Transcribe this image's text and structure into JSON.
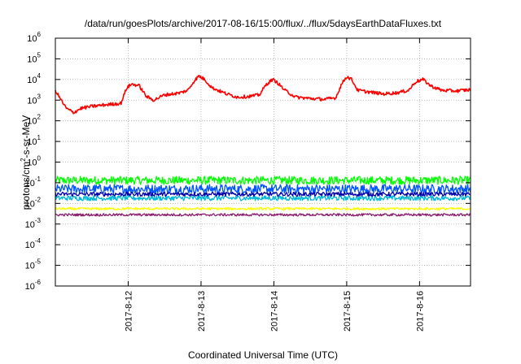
{
  "chart_data": {
    "type": "line",
    "title": "/data/run/goesPlots/archive/2017-08-16/15:00/flux/../flux/5daysEarthDataFluxes.txt",
    "xlabel": "Coordinated Universal Time (UTC)",
    "ylabel": {
      "prefix": "protons/cm",
      "sup": "2",
      "suffix": "-s-sr-MeV"
    },
    "x_ticks": [
      "2017-8-12",
      "2017-8-13",
      "2017-8-14",
      "2017-8-15",
      "2017-8-16"
    ],
    "x_tick_days": [
      1.0,
      2.0,
      3.0,
      4.0,
      5.0
    ],
    "x_range_days": [
      0.0,
      5.7
    ],
    "y_scale": "log",
    "y_range": [
      1e-06,
      1000000.0
    ],
    "y_ticks": [
      {
        "base": "10",
        "exp": "6"
      },
      {
        "base": "10",
        "exp": "5"
      },
      {
        "base": "10",
        "exp": "4"
      },
      {
        "base": "10",
        "exp": "3"
      },
      {
        "base": "10",
        "exp": "2"
      },
      {
        "base": "10",
        "exp": "1"
      },
      {
        "base": "10",
        "exp": "0"
      },
      {
        "base": "10",
        "exp": "-1"
      },
      {
        "base": "10",
        "exp": "-2"
      },
      {
        "base": "10",
        "exp": "-3"
      },
      {
        "base": "10",
        "exp": "-4"
      },
      {
        "base": "10",
        "exp": "-5"
      },
      {
        "base": "10",
        "exp": "-6"
      }
    ],
    "y_tick_exponents": [
      6,
      5,
      4,
      3,
      2,
      1,
      0,
      -1,
      -2,
      -3,
      -4,
      -5,
      -6
    ],
    "grid": true,
    "series": [
      {
        "color": "#ff0000",
        "noise": 0.08,
        "x": [
          0.0,
          0.08,
          0.15,
          0.25,
          0.35,
          0.5,
          0.7,
          0.9,
          0.98,
          1.05,
          1.15,
          1.25,
          1.35,
          1.5,
          1.7,
          1.82,
          1.9,
          1.97,
          2.05,
          2.15,
          2.35,
          2.5,
          2.65,
          2.8,
          2.9,
          2.98,
          3.05,
          3.15,
          3.3,
          3.5,
          3.7,
          3.85,
          3.93,
          4.0,
          4.07,
          4.15,
          4.3,
          4.5,
          4.7,
          4.85,
          4.95,
          5.05,
          5.15,
          5.3,
          5.5,
          5.7
        ],
        "y": [
          3000,
          1000,
          400,
          250,
          400,
          500,
          600,
          700,
          4000,
          6000,
          5000,
          1500,
          1000,
          1800,
          2200,
          3000,
          8000,
          15000,
          10000,
          4000,
          2000,
          1400,
          1500,
          1800,
          6000,
          10000,
          7000,
          3000,
          1400,
          1200,
          1100,
          1300,
          6000,
          14000,
          10000,
          3000,
          2500,
          2000,
          2300,
          3000,
          8000,
          10000,
          5000,
          3000,
          2800,
          3200
        ]
      },
      {
        "color": "#00ff00",
        "x": [
          0.0,
          5.7
        ],
        "y": [
          0.13,
          0.13
        ],
        "noise": 0.2
      },
      {
        "color": "#0055ff",
        "x": [
          0.0,
          5.7
        ],
        "y": [
          0.05,
          0.05
        ],
        "noise": 0.22
      },
      {
        "color": "#00b8d8",
        "x": [
          0.0,
          5.7
        ],
        "y": [
          0.018,
          0.018
        ],
        "noise": 0.12
      },
      {
        "color": "#0000aa",
        "x": [
          0.0,
          5.7
        ],
        "y": [
          0.028,
          0.028
        ],
        "noise": 0.1
      },
      {
        "color": "#ffff00",
        "x": [
          0.0,
          5.7
        ],
        "y": [
          0.0055,
          0.0055
        ],
        "noise": 0.06
      },
      {
        "color": "#8b1a6b",
        "x": [
          0.0,
          5.7
        ],
        "y": [
          0.0028,
          0.0028
        ],
        "noise": 0.06
      }
    ]
  }
}
